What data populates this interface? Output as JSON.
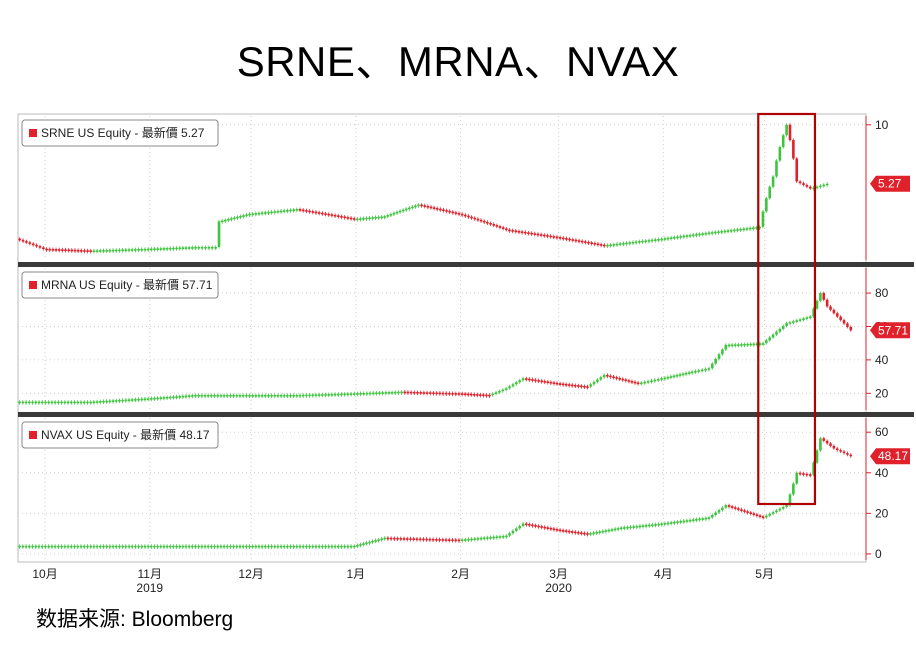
{
  "title": "SRNE、MRNA、NVAX",
  "source": "数据来源:  Bloomberg",
  "chart_data": {
    "type": "candlestick",
    "x_labels": [
      "10月",
      "11月",
      "12月",
      "1月",
      "2月",
      "3月",
      "4月",
      "5月"
    ],
    "year_labels": [
      {
        "month": "11月",
        "year": "2019"
      },
      {
        "month": "3月",
        "year": "2020"
      }
    ],
    "x_range": [
      "2019-09-23",
      "2020-05-31"
    ],
    "highlight": {
      "start": "2020-04-30",
      "end": "2020-05-15",
      "color": "#b00000"
    },
    "up_color": "#3ec43e",
    "down_color": "#e0202a",
    "panels": [
      {
        "legend": "SRNE US Equity - 最新價 5.27",
        "last_price": "5.27",
        "last_value": 5.27,
        "y_ticks": [
          "10"
        ],
        "y_tick_values": [
          10
        ],
        "ylim": [
          2.3,
          11
        ],
        "scale": "log",
        "series": [
          {
            "date": "2019-09-23",
            "value": 2.9
          },
          {
            "date": "2019-10-01",
            "value": 2.6
          },
          {
            "date": "2019-10-15",
            "value": 2.55
          },
          {
            "date": "2019-11-01",
            "value": 2.6
          },
          {
            "date": "2019-11-15",
            "value": 2.65
          },
          {
            "date": "2019-11-21",
            "value": 2.65
          },
          {
            "date": "2019-11-22",
            "value": 3.5
          },
          {
            "date": "2019-12-01",
            "value": 3.8
          },
          {
            "date": "2019-12-15",
            "value": 4.0
          },
          {
            "date": "2020-01-01",
            "value": 3.6
          },
          {
            "date": "2020-01-10",
            "value": 3.7
          },
          {
            "date": "2020-01-20",
            "value": 4.2
          },
          {
            "date": "2020-02-01",
            "value": 3.8
          },
          {
            "date": "2020-02-15",
            "value": 3.2
          },
          {
            "date": "2020-03-01",
            "value": 2.95
          },
          {
            "date": "2020-03-15",
            "value": 2.7
          },
          {
            "date": "2020-04-01",
            "value": 2.9
          },
          {
            "date": "2020-04-15",
            "value": 3.1
          },
          {
            "date": "2020-04-30",
            "value": 3.3
          },
          {
            "date": "2020-05-04",
            "value": 5.7
          },
          {
            "date": "2020-05-08",
            "value": 10.0
          },
          {
            "date": "2020-05-11",
            "value": 5.4
          },
          {
            "date": "2020-05-15",
            "value": 5.0
          },
          {
            "date": "2020-05-20",
            "value": 5.27
          }
        ]
      },
      {
        "legend": "MRNA US Equity - 最新價 57.71",
        "last_price": "57.71",
        "last_value": 57.71,
        "y_ticks": [
          "80",
          "60",
          "40",
          "20"
        ],
        "y_tick_values": [
          80,
          60,
          40,
          20
        ],
        "ylim": [
          10,
          95
        ],
        "scale": "linear",
        "series": [
          {
            "date": "2019-09-23",
            "value": 15
          },
          {
            "date": "2019-10-15",
            "value": 15
          },
          {
            "date": "2019-11-01",
            "value": 17
          },
          {
            "date": "2019-11-15",
            "value": 19
          },
          {
            "date": "2019-12-01",
            "value": 19
          },
          {
            "date": "2019-12-15",
            "value": 19
          },
          {
            "date": "2020-01-01",
            "value": 20
          },
          {
            "date": "2020-01-15",
            "value": 21
          },
          {
            "date": "2020-02-01",
            "value": 20
          },
          {
            "date": "2020-02-10",
            "value": 19
          },
          {
            "date": "2020-02-15",
            "value": 23
          },
          {
            "date": "2020-02-20",
            "value": 29
          },
          {
            "date": "2020-03-01",
            "value": 26
          },
          {
            "date": "2020-03-10",
            "value": 24
          },
          {
            "date": "2020-03-15",
            "value": 31
          },
          {
            "date": "2020-03-25",
            "value": 26
          },
          {
            "date": "2020-04-01",
            "value": 29
          },
          {
            "date": "2020-04-10",
            "value": 33
          },
          {
            "date": "2020-04-15",
            "value": 35
          },
          {
            "date": "2020-04-20",
            "value": 49
          },
          {
            "date": "2020-05-01",
            "value": 50
          },
          {
            "date": "2020-05-08",
            "value": 62
          },
          {
            "date": "2020-05-15",
            "value": 66
          },
          {
            "date": "2020-05-18",
            "value": 80
          },
          {
            "date": "2020-05-20",
            "value": 72
          },
          {
            "date": "2020-05-27",
            "value": 57.71
          }
        ]
      },
      {
        "legend": "NVAX US Equity - 最新價 48.17",
        "last_price": "48.17",
        "last_value": 48.17,
        "y_ticks": [
          "60",
          "40",
          "20",
          "0"
        ],
        "y_tick_values": [
          60,
          40,
          20,
          0
        ],
        "ylim": [
          -3,
          67
        ],
        "scale": "linear",
        "series": [
          {
            "date": "2019-09-23",
            "value": 4
          },
          {
            "date": "2019-10-15",
            "value": 4
          },
          {
            "date": "2019-11-01",
            "value": 4
          },
          {
            "date": "2019-11-15",
            "value": 4
          },
          {
            "date": "2019-12-01",
            "value": 4
          },
          {
            "date": "2019-12-15",
            "value": 4
          },
          {
            "date": "2020-01-01",
            "value": 4
          },
          {
            "date": "2020-01-10",
            "value": 8
          },
          {
            "date": "2020-02-01",
            "value": 7
          },
          {
            "date": "2020-02-15",
            "value": 9
          },
          {
            "date": "2020-02-20",
            "value": 15
          },
          {
            "date": "2020-03-01",
            "value": 12
          },
          {
            "date": "2020-03-10",
            "value": 10
          },
          {
            "date": "2020-03-20",
            "value": 13
          },
          {
            "date": "2020-04-01",
            "value": 15
          },
          {
            "date": "2020-04-15",
            "value": 18
          },
          {
            "date": "2020-04-20",
            "value": 24
          },
          {
            "date": "2020-05-01",
            "value": 18
          },
          {
            "date": "2020-05-08",
            "value": 24
          },
          {
            "date": "2020-05-11",
            "value": 40
          },
          {
            "date": "2020-05-15",
            "value": 39
          },
          {
            "date": "2020-05-18",
            "value": 57
          },
          {
            "date": "2020-05-22",
            "value": 52
          },
          {
            "date": "2020-05-27",
            "value": 48.17
          }
        ]
      }
    ]
  }
}
